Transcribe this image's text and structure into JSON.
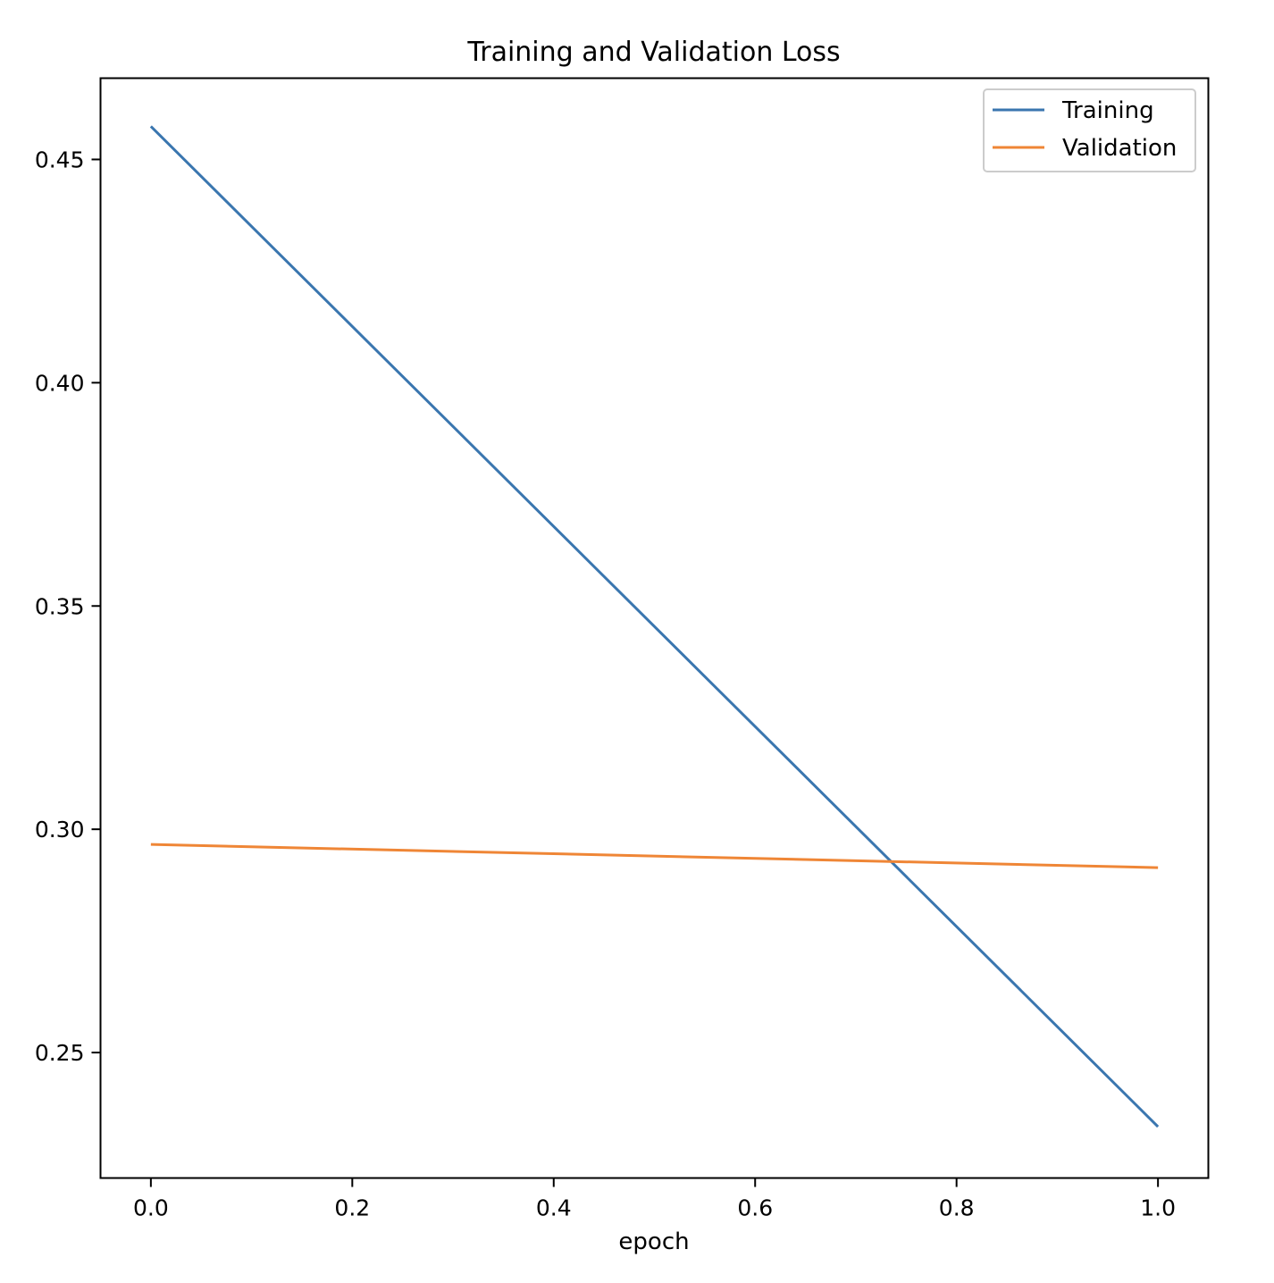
{
  "chart_data": {
    "type": "line",
    "title": "Training and Validation Loss",
    "xlabel": "epoch",
    "ylabel": "",
    "x": [
      0.0,
      1.0
    ],
    "series": [
      {
        "name": "Training",
        "values": [
          0.4574,
          0.2334
        ],
        "color": "#3a76af"
      },
      {
        "name": "Validation",
        "values": [
          0.2966,
          0.2914
        ],
        "color": "#ef8636"
      }
    ],
    "xlim": [
      -0.05,
      1.05
    ],
    "ylim": [
      0.2219,
      0.4682
    ],
    "xticks": [
      0.0,
      0.2,
      0.4,
      0.6,
      0.8,
      1.0
    ],
    "xtick_labels": [
      "0.0",
      "0.2",
      "0.4",
      "0.6",
      "0.8",
      "1.0"
    ],
    "yticks": [
      0.25,
      0.3,
      0.35,
      0.4,
      0.45
    ],
    "ytick_labels": [
      "0.25",
      "0.30",
      "0.35",
      "0.40",
      "0.45"
    ],
    "grid": false,
    "legend_position": "top-right"
  }
}
